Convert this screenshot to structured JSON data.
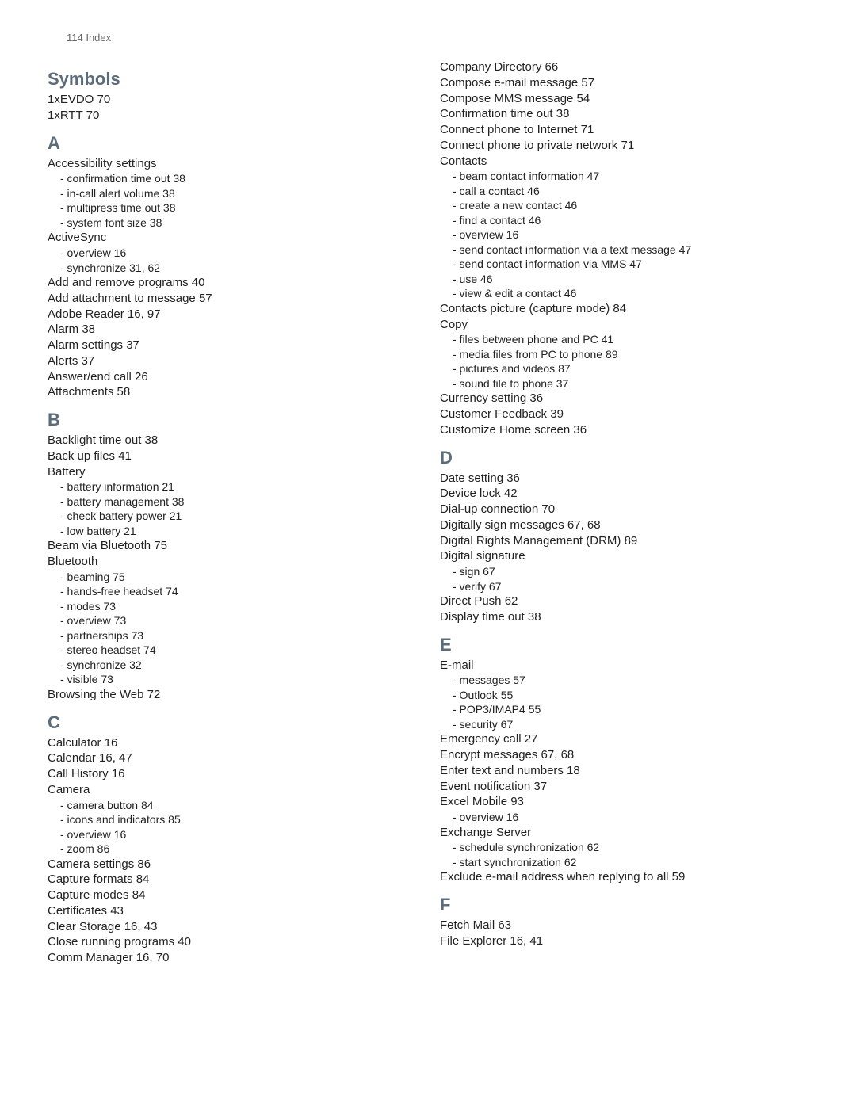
{
  "header": "114  Index",
  "columns": [
    [
      {
        "type": "head",
        "text": "Symbols"
      },
      {
        "type": "entry",
        "text": "1xEVDO  70"
      },
      {
        "type": "entry",
        "text": "1xRTT  70"
      },
      {
        "type": "head",
        "text": "A"
      },
      {
        "type": "entry",
        "text": "Accessibility settings"
      },
      {
        "type": "sub",
        "text": "- confirmation time out  38"
      },
      {
        "type": "sub",
        "text": "- in-call alert volume  38"
      },
      {
        "type": "sub",
        "text": "- multipress time out  38"
      },
      {
        "type": "sub",
        "text": "- system font size  38"
      },
      {
        "type": "entry",
        "text": "ActiveSync"
      },
      {
        "type": "sub",
        "text": "- overview  16"
      },
      {
        "type": "sub",
        "text": "- synchronize  31, 62"
      },
      {
        "type": "entry",
        "text": "Add and remove programs  40"
      },
      {
        "type": "entry",
        "text": "Add attachment to message  57"
      },
      {
        "type": "entry",
        "text": "Adobe Reader  16, 97"
      },
      {
        "type": "entry",
        "text": "Alarm  38"
      },
      {
        "type": "entry",
        "text": "Alarm settings  37"
      },
      {
        "type": "entry",
        "text": "Alerts  37"
      },
      {
        "type": "entry",
        "text": "Answer/end call  26"
      },
      {
        "type": "entry",
        "text": "Attachments  58"
      },
      {
        "type": "head",
        "text": "B"
      },
      {
        "type": "entry",
        "text": "Backlight time out  38"
      },
      {
        "type": "entry",
        "text": "Back up files  41"
      },
      {
        "type": "entry",
        "text": "Battery"
      },
      {
        "type": "sub",
        "text": "- battery information  21"
      },
      {
        "type": "sub",
        "text": "- battery management  38"
      },
      {
        "type": "sub",
        "text": "- check battery power  21"
      },
      {
        "type": "sub",
        "text": "- low battery  21"
      },
      {
        "type": "entry",
        "text": "Beam via Bluetooth  75"
      },
      {
        "type": "entry",
        "text": "Bluetooth"
      },
      {
        "type": "sub",
        "text": "- beaming  75"
      },
      {
        "type": "sub",
        "text": "- hands-free headset  74"
      },
      {
        "type": "sub",
        "text": "- modes  73"
      },
      {
        "type": "sub",
        "text": "- overview  73"
      },
      {
        "type": "sub",
        "text": "- partnerships  73"
      },
      {
        "type": "sub",
        "text": "- stereo headset  74"
      },
      {
        "type": "sub",
        "text": "- synchronize  32"
      },
      {
        "type": "sub",
        "text": "- visible  73"
      },
      {
        "type": "entry",
        "text": "Browsing the Web  72"
      },
      {
        "type": "head",
        "text": "C"
      },
      {
        "type": "entry",
        "text": "Calculator  16"
      },
      {
        "type": "entry",
        "text": "Calendar  16, 47"
      },
      {
        "type": "entry",
        "text": "Call History  16"
      },
      {
        "type": "entry",
        "text": "Camera"
      },
      {
        "type": "sub",
        "text": "- camera button  84"
      },
      {
        "type": "sub",
        "text": "- icons and indicators  85"
      },
      {
        "type": "sub",
        "text": "- overview  16"
      },
      {
        "type": "sub",
        "text": "- zoom  86"
      },
      {
        "type": "entry",
        "text": "Camera settings  86"
      },
      {
        "type": "entry",
        "text": "Capture formats  84"
      },
      {
        "type": "entry",
        "text": "Capture modes  84"
      },
      {
        "type": "entry",
        "text": "Certificates  43"
      },
      {
        "type": "entry",
        "text": "Clear Storage  16, 43"
      },
      {
        "type": "entry",
        "text": "Close running programs  40"
      },
      {
        "type": "entry",
        "text": "Comm Manager  16, 70"
      }
    ],
    [
      {
        "type": "entry",
        "text": "Company Directory  66"
      },
      {
        "type": "entry",
        "text": "Compose e-mail message  57"
      },
      {
        "type": "entry",
        "text": "Compose MMS message  54"
      },
      {
        "type": "entry",
        "text": "Confirmation time out  38"
      },
      {
        "type": "entry",
        "text": "Connect phone to Internet  71"
      },
      {
        "type": "entry",
        "text": "Connect phone to private network  71"
      },
      {
        "type": "entry",
        "text": "Contacts"
      },
      {
        "type": "sub",
        "text": "- beam contact information  47"
      },
      {
        "type": "sub",
        "text": "- call a contact  46"
      },
      {
        "type": "sub",
        "text": "- create a new contact  46"
      },
      {
        "type": "sub",
        "text": "- find a contact  46"
      },
      {
        "type": "sub",
        "text": "- overview  16"
      },
      {
        "type": "sub",
        "text": "- send contact information via a text message  47"
      },
      {
        "type": "sub",
        "text": "- send contact information via MMS  47"
      },
      {
        "type": "sub",
        "text": "- use  46"
      },
      {
        "type": "sub",
        "text": "- view & edit a contact  46"
      },
      {
        "type": "entry",
        "text": "Contacts picture (capture mode)  84"
      },
      {
        "type": "entry",
        "text": "Copy"
      },
      {
        "type": "sub",
        "text": "- files between phone and PC  41"
      },
      {
        "type": "sub",
        "text": "- media files from PC to phone  89"
      },
      {
        "type": "sub",
        "text": "- pictures and videos  87"
      },
      {
        "type": "sub",
        "text": "- sound file to phone  37"
      },
      {
        "type": "entry",
        "text": "Currency setting  36"
      },
      {
        "type": "entry",
        "text": "Customer Feedback  39"
      },
      {
        "type": "entry",
        "text": "Customize Home screen  36"
      },
      {
        "type": "head",
        "text": "D"
      },
      {
        "type": "entry",
        "text": "Date setting  36"
      },
      {
        "type": "entry",
        "text": "Device lock  42"
      },
      {
        "type": "entry",
        "text": "Dial-up connection  70"
      },
      {
        "type": "entry",
        "text": "Digitally sign messages  67, 68"
      },
      {
        "type": "entry",
        "text": "Digital Rights Management (DRM)  89"
      },
      {
        "type": "entry",
        "text": "Digital signature"
      },
      {
        "type": "sub",
        "text": "- sign  67"
      },
      {
        "type": "sub",
        "text": "- verify  67"
      },
      {
        "type": "entry",
        "text": "Direct Push  62"
      },
      {
        "type": "entry",
        "text": "Display time out  38"
      },
      {
        "type": "head",
        "text": "E"
      },
      {
        "type": "entry",
        "text": "E-mail"
      },
      {
        "type": "sub",
        "text": "- messages  57"
      },
      {
        "type": "sub",
        "text": "- Outlook  55"
      },
      {
        "type": "sub",
        "text": "- POP3/IMAP4  55"
      },
      {
        "type": "sub",
        "text": "- security  67"
      },
      {
        "type": "entry",
        "text": "Emergency call  27"
      },
      {
        "type": "entry",
        "text": "Encrypt messages  67, 68"
      },
      {
        "type": "entry",
        "text": "Enter text and numbers  18"
      },
      {
        "type": "entry",
        "text": "Event notification  37"
      },
      {
        "type": "entry",
        "text": "Excel Mobile  93"
      },
      {
        "type": "sub",
        "text": "- overview  16"
      },
      {
        "type": "entry",
        "text": "Exchange Server"
      },
      {
        "type": "sub",
        "text": "- schedule synchronization  62"
      },
      {
        "type": "sub",
        "text": "- start synchronization  62"
      },
      {
        "type": "entry",
        "text": "Exclude e-mail address when replying to all  59"
      },
      {
        "type": "head",
        "text": "F"
      },
      {
        "type": "entry",
        "text": "Fetch Mail  63"
      },
      {
        "type": "entry",
        "text": "File Explorer  16, 41"
      }
    ]
  ]
}
